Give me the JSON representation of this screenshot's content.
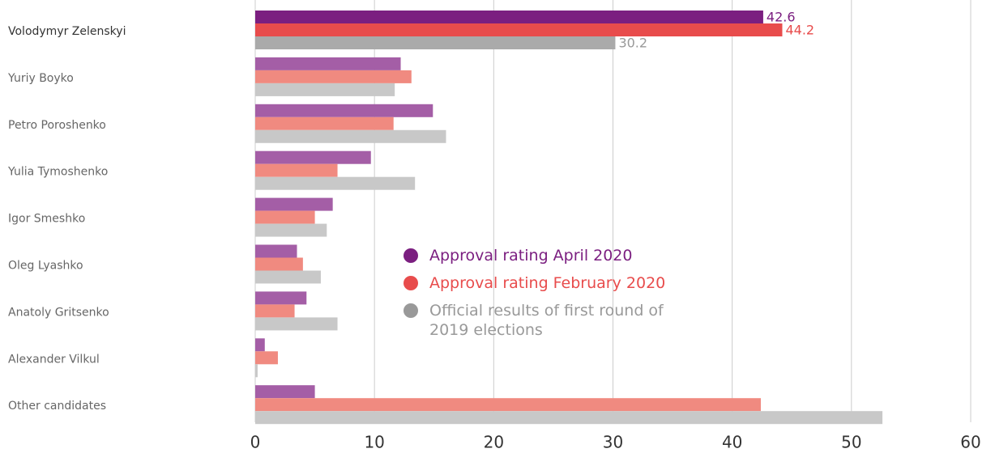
{
  "chart_data": {
    "type": "hbar",
    "categories": [
      "Volodymyr Zelenskyi",
      "Yuriy Boyko",
      "Petro Poroshenko",
      "Yulia Tymoshenko",
      "Igor Smeshko",
      "Oleg Lyashko",
      "Anatoly Gritsenko",
      "Alexander Vilkul",
      "Other candidates"
    ],
    "series": [
      {
        "name": "Approval rating April 2020",
        "color": "#7b1f80",
        "colors": [
          "#7b1f80",
          "#a45ea6",
          "#a45ea6",
          "#a45ea6",
          "#a45ea6",
          "#a45ea6",
          "#a45ea6",
          "#a45ea6",
          "#a45ea6"
        ],
        "values": [
          42.6,
          12.2,
          14.9,
          9.7,
          6.5,
          3.5,
          4.3,
          0.8,
          5.0
        ],
        "value_labels": [
          "42.6",
          null,
          null,
          null,
          null,
          null,
          null,
          null,
          null
        ]
      },
      {
        "name": "Approval rating February 2020",
        "color": "#e84c4c",
        "colors": [
          "#e84c4c",
          "#f08a80",
          "#f08a80",
          "#f08a80",
          "#f08a80",
          "#f08a80",
          "#f08a80",
          "#f08a80",
          "#f08a80"
        ],
        "values": [
          44.2,
          13.1,
          11.6,
          6.9,
          5.0,
          4.0,
          3.3,
          1.9,
          42.4
        ],
        "value_labels": [
          "44.2",
          null,
          null,
          null,
          null,
          null,
          null,
          null,
          null
        ]
      },
      {
        "name": "Official results of first round of 2019 elections",
        "color": "#999999",
        "colors": [
          "#aaaaaa",
          "#c8c8c8",
          "#c8c8c8",
          "#c8c8c8",
          "#c8c8c8",
          "#c8c8c8",
          "#c8c8c8",
          "#c8c8c8",
          "#c8c8c8"
        ],
        "values": [
          30.2,
          11.7,
          16.0,
          13.4,
          6.0,
          5.5,
          6.9,
          0.2,
          52.6
        ],
        "value_labels": [
          "30.2",
          null,
          null,
          null,
          null,
          null,
          null,
          null,
          null
        ]
      }
    ],
    "xlim": [
      0,
      60
    ],
    "xticks": [
      0,
      10,
      20,
      30,
      40,
      50,
      60
    ],
    "grid": true,
    "legend": "center"
  }
}
